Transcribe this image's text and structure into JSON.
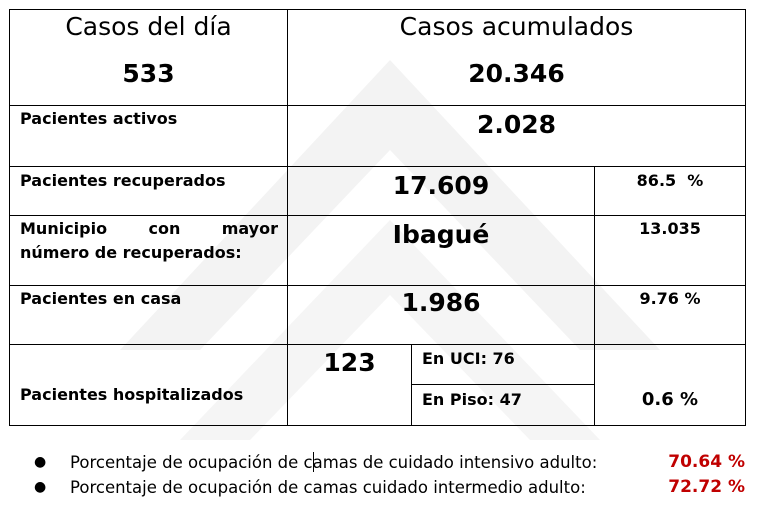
{
  "table": {
    "casos_dia_label": "Casos del día",
    "casos_dia_value": "533",
    "casos_acum_label": "Casos acumulados",
    "casos_acum_value": "20.346",
    "activos_label": "Pacientes activos",
    "activos_value": "2.028",
    "recuperados_label": "Pacientes recuperados",
    "recuperados_value": "17.609",
    "recuperados_pct": "86.5  %",
    "municipio_label_line1": "Municipio con mayor",
    "municipio_label_line2": "número de recuperados:",
    "municipio_value": "Ibagué",
    "municipio_count": "13.035",
    "casa_label": "Pacientes en casa",
    "casa_value": "1.986",
    "casa_pct": "9.76 %",
    "hosp_label": "Pacientes hospitalizados",
    "hosp_value": "123",
    "uci_label": "En UCI: 76",
    "piso_label": "En Piso: 47",
    "hosp_pct": "0.6 %"
  },
  "bullets": [
    {
      "text": "Porcentaje de ocupación de camas de cuidado intensivo adulto:",
      "value": "70.64 %"
    },
    {
      "text": "Porcentaje de ocupación de camas cuidado intermedio adulto:",
      "value": "72.72 %"
    }
  ],
  "colors": {
    "highlight": "#c00000",
    "watermark": "#f2f2f2"
  }
}
